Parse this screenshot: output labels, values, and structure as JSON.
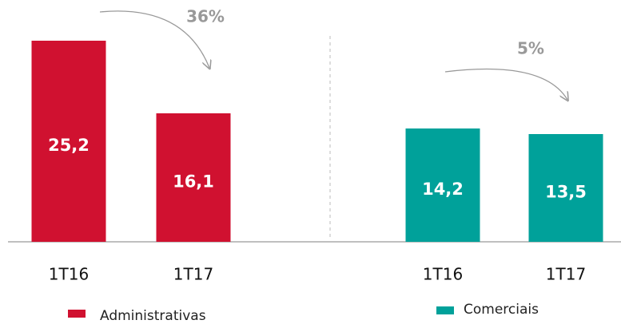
{
  "chart_data": [
    {
      "type": "bar",
      "categories": [
        "1T16",
        "1T17"
      ],
      "series": [
        {
          "name": "Administrativas",
          "color": "#d01130",
          "values": [
            25.2,
            16.1
          ],
          "value_labels": [
            "25,2",
            "16,1"
          ]
        }
      ],
      "annotation": "36%"
    },
    {
      "type": "bar",
      "categories": [
        "1T16",
        "1T17"
      ],
      "series": [
        {
          "name": "Comerciais",
          "color": "#00a19a",
          "values": [
            14.2,
            13.5
          ],
          "value_labels": [
            "14,2",
            "13,5"
          ]
        }
      ],
      "annotation": "5%"
    }
  ]
}
